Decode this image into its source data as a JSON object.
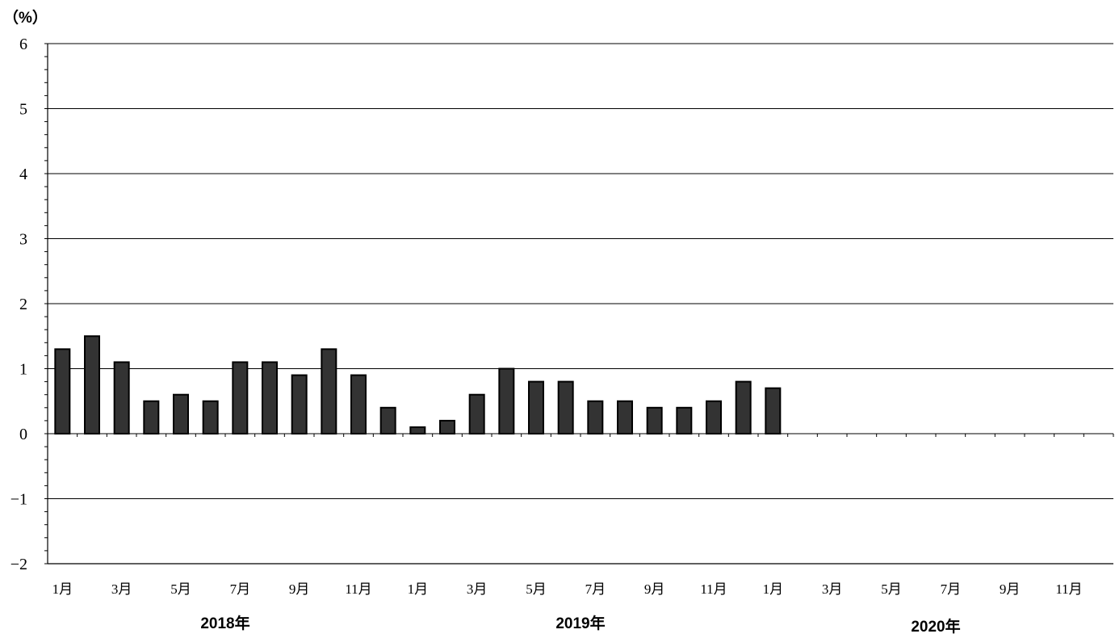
{
  "chart_data": {
    "type": "bar",
    "unit_label": "（%）",
    "ylim": [
      -2,
      6
    ],
    "yticks": [
      "6",
      "5",
      "4",
      "3",
      "2",
      "1",
      "0",
      "−1",
      "−2"
    ],
    "ytick_values": [
      6,
      5,
      4,
      3,
      2,
      1,
      0,
      -1,
      -2
    ],
    "grid": "horizontal",
    "categories": [
      "2018-01",
      "2018-02",
      "2018-03",
      "2018-04",
      "2018-05",
      "2018-06",
      "2018-07",
      "2018-08",
      "2018-09",
      "2018-10",
      "2018-11",
      "2018-12",
      "2019-01",
      "2019-02",
      "2019-03",
      "2019-04",
      "2019-05",
      "2019-06",
      "2019-07",
      "2019-08",
      "2019-09",
      "2019-10",
      "2019-11",
      "2019-12",
      "2020-01",
      "2020-02",
      "2020-03",
      "2020-04",
      "2020-05",
      "2020-06",
      "2020-07",
      "2020-08",
      "2020-09",
      "2020-10",
      "2020-11",
      "2020-12"
    ],
    "values": [
      1.3,
      1.5,
      1.1,
      0.5,
      0.6,
      0.5,
      1.1,
      1.1,
      0.9,
      1.3,
      0.9,
      0.4,
      0.1,
      0.2,
      0.6,
      1.0,
      0.8,
      0.8,
      0.5,
      0.5,
      0.4,
      0.4,
      0.5,
      0.8,
      0.7,
      null,
      null,
      null,
      null,
      null,
      null,
      null,
      null,
      null,
      null,
      null
    ],
    "xtick_labels": [
      "1月",
      "3月",
      "5月",
      "7月",
      "9月",
      "11月",
      "1月",
      "3月",
      "5月",
      "7月",
      "9月",
      "11月",
      "1月",
      "3月",
      "5月",
      "7月",
      "9月",
      "11月"
    ],
    "xtick_category_index": [
      0,
      2,
      4,
      6,
      8,
      10,
      12,
      14,
      16,
      18,
      20,
      22,
      24,
      26,
      28,
      30,
      32,
      34
    ],
    "years": [
      "2018年",
      "2019年",
      "2020年"
    ],
    "bar_color": "#333333",
    "axis_color": "#000000"
  }
}
